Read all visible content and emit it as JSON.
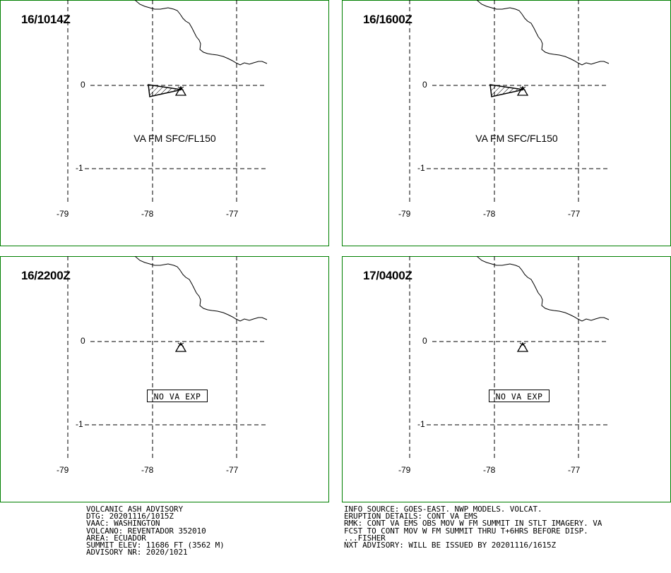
{
  "panels": [
    {
      "time": "16/1014Z",
      "ash": true,
      "label": "VA FM SFC/FL150"
    },
    {
      "time": "16/1600Z",
      "ash": true,
      "label": "VA FM SFC/FL150"
    },
    {
      "time": "16/2200Z",
      "ash": false,
      "label": "NO VA EXP"
    },
    {
      "time": "17/0400Z",
      "ash": false,
      "label": "NO VA EXP"
    }
  ],
  "axes": {
    "lat_labels": [
      "0",
      "-1"
    ],
    "lon_labels": [
      "-79",
      "-78",
      "-77"
    ]
  },
  "advisory_left": [
    "VOLCANIC ASH ADVISORY",
    "DTG: 20201116/1015Z",
    "VAAC: WASHINGTON",
    "VOLCANO: REVENTADOR 352010",
    "AREA: ECUADOR",
    "SUMMIT ELEV: 11686 FT (3562 M)",
    "ADVISORY NR: 2020/1021"
  ],
  "advisory_right": [
    "INFO SOURCE: GOES-EAST. NWP MODELS. VOLCAT.",
    "ERUPTION DETAILS: CONT VA EMS",
    "RMK: CONT VA EMS OBS MOV W FM SUMMIT IN STLT IMAGERY. VA",
    "FCST TO CONT MOV W FM SUMMIT THRU T+6HRS BEFORE DISP.",
    "...FISHER",
    "NXT ADVISORY: WILL BE ISSUED BY 20201116/1615Z"
  ],
  "colors": {
    "frame": "#008000",
    "ink": "#000000"
  },
  "icons": {
    "volcano": "volcano-triangle-icon"
  }
}
